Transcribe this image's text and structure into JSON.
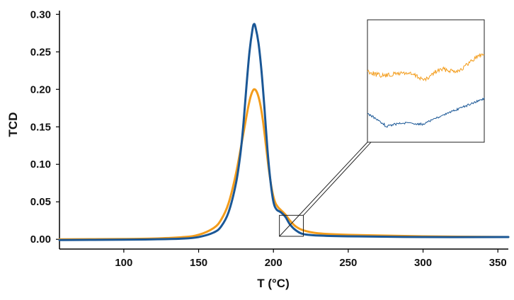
{
  "chart_data": {
    "type": "line",
    "title": "",
    "xlabel": "T (°C)",
    "ylabel": "TCD",
    "xlim": [
      57,
      357
    ],
    "ylim": [
      -0.013,
      0.305
    ],
    "x_ticks": [
      100,
      150,
      200,
      250,
      300,
      350
    ],
    "y_ticks": [
      0.0,
      0.05,
      0.1,
      0.15,
      0.2,
      0.25,
      0.3
    ],
    "y_tick_labels": [
      "0.00",
      "0.05",
      "0.10",
      "0.15",
      "0.20",
      "0.25",
      "0.30"
    ],
    "grid": false,
    "legend": "none",
    "series": [
      {
        "color": "#F39C1B",
        "peak_x": 187,
        "peak_y": 0.2,
        "points": [
          [
            57,
            0.0
          ],
          [
            100,
            0.0005
          ],
          [
            120,
            0.001
          ],
          [
            140,
            0.003
          ],
          [
            150,
            0.006
          ],
          [
            160,
            0.015
          ],
          [
            165,
            0.026
          ],
          [
            170,
            0.048
          ],
          [
            175,
            0.088
          ],
          [
            180,
            0.142
          ],
          [
            183,
            0.175
          ],
          [
            185,
            0.192
          ],
          [
            187,
            0.2
          ],
          [
            189,
            0.196
          ],
          [
            191,
            0.182
          ],
          [
            193,
            0.158
          ],
          [
            195,
            0.125
          ],
          [
            197,
            0.092
          ],
          [
            199,
            0.066
          ],
          [
            201,
            0.05
          ],
          [
            203,
            0.043
          ],
          [
            205,
            0.039
          ],
          [
            208,
            0.033
          ],
          [
            211,
            0.025
          ],
          [
            215,
            0.017
          ],
          [
            220,
            0.012
          ],
          [
            230,
            0.008
          ],
          [
            250,
            0.006
          ],
          [
            300,
            0.004
          ],
          [
            357,
            0.003
          ]
        ]
      },
      {
        "color": "#1A5796",
        "peak_x": 187,
        "peak_y": 0.287,
        "points": [
          [
            57,
            -0.001
          ],
          [
            100,
            -0.0005
          ],
          [
            120,
            0.0
          ],
          [
            140,
            0.001
          ],
          [
            150,
            0.003
          ],
          [
            160,
            0.009
          ],
          [
            165,
            0.017
          ],
          [
            170,
            0.036
          ],
          [
            175,
            0.075
          ],
          [
            178,
            0.115
          ],
          [
            180,
            0.155
          ],
          [
            182,
            0.205
          ],
          [
            184,
            0.25
          ],
          [
            186,
            0.28
          ],
          [
            187,
            0.287
          ],
          [
            188,
            0.283
          ],
          [
            190,
            0.262
          ],
          [
            192,
            0.225
          ],
          [
            194,
            0.175
          ],
          [
            196,
            0.12
          ],
          [
            198,
            0.078
          ],
          [
            200,
            0.05
          ],
          [
            202,
            0.04
          ],
          [
            205,
            0.036
          ],
          [
            208,
            0.03
          ],
          [
            211,
            0.02
          ],
          [
            215,
            0.012
          ],
          [
            220,
            0.007
          ],
          [
            230,
            0.005
          ],
          [
            250,
            0.004
          ],
          [
            300,
            0.003
          ],
          [
            357,
            0.003
          ]
        ]
      }
    ],
    "inset": {
      "zoom_region_x": [
        204,
        220
      ],
      "zoom_region_y": [
        0.004,
        0.032
      ],
      "series_colors": [
        "#F39C1B",
        "#1A5796"
      ]
    }
  }
}
